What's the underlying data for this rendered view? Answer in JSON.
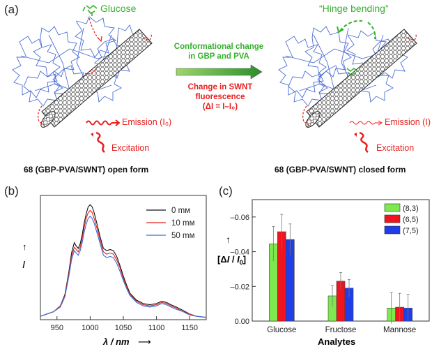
{
  "panel_a": {
    "letter": "(a)",
    "glucose_label": "Glucose",
    "hinge_label": "“Hinge bending”",
    "arrow_text_line1": "Conformational change",
    "arrow_text_line2": "in GBP and PVA",
    "change_line1": "Change in SWNT fluorescence",
    "change_line2": "(ΔI = I–I₀)",
    "left_emission": "Emission (I₀)",
    "left_excitation": "Excitation",
    "right_emission": "Emission (I)",
    "right_excitation": "Excitation",
    "left_caption": "68 (GBP-PVA/SWNT) open form",
    "right_caption": "68 (GBP-PVA/SWNT) closed form",
    "colors": {
      "red": "#e8201e",
      "green": "#35b02d",
      "protein_blue": "#3a5fd0"
    }
  },
  "panel_b": {
    "letter": "(b)",
    "chart_data": {
      "type": "line",
      "title": "",
      "xlabel": "λ / nm",
      "ylabel": "I",
      "x_ticks": [
        950,
        1000,
        1050,
        1100,
        1150
      ],
      "xlim": [
        925,
        1175
      ],
      "ylim": [
        0,
        1.08
      ],
      "x": [
        925,
        935,
        945,
        955,
        962,
        968,
        972,
        976,
        979,
        982,
        985,
        988,
        991,
        994,
        997,
        1000,
        1003,
        1006,
        1010,
        1015,
        1020,
        1025,
        1030,
        1035,
        1040,
        1045,
        1050,
        1055,
        1060,
        1070,
        1080,
        1090,
        1100,
        1108,
        1115,
        1122,
        1130,
        1140,
        1150,
        1160,
        1175
      ],
      "series": [
        {
          "name": "0 mᴍ",
          "color": "#111111",
          "values": [
            0.03,
            0.05,
            0.07,
            0.12,
            0.22,
            0.42,
            0.58,
            0.67,
            0.64,
            0.62,
            0.66,
            0.74,
            0.84,
            0.92,
            0.98,
            1.0,
            0.98,
            0.93,
            0.84,
            0.72,
            0.62,
            0.6,
            0.61,
            0.6,
            0.55,
            0.47,
            0.38,
            0.3,
            0.23,
            0.17,
            0.14,
            0.13,
            0.14,
            0.16,
            0.15,
            0.13,
            0.11,
            0.08,
            0.05,
            0.03,
            0.02
          ]
        },
        {
          "name": "10 mᴍ",
          "color": "#e8201e",
          "values": [
            0.03,
            0.05,
            0.07,
            0.12,
            0.21,
            0.4,
            0.55,
            0.63,
            0.61,
            0.59,
            0.63,
            0.71,
            0.8,
            0.88,
            0.93,
            0.95,
            0.93,
            0.88,
            0.8,
            0.69,
            0.59,
            0.57,
            0.58,
            0.57,
            0.52,
            0.45,
            0.36,
            0.28,
            0.22,
            0.16,
            0.13,
            0.12,
            0.13,
            0.15,
            0.14,
            0.12,
            0.1,
            0.07,
            0.05,
            0.03,
            0.02
          ]
        },
        {
          "name": "50 mᴍ",
          "color": "#3a6fd8",
          "values": [
            0.03,
            0.05,
            0.07,
            0.11,
            0.2,
            0.38,
            0.52,
            0.6,
            0.58,
            0.56,
            0.6,
            0.67,
            0.76,
            0.83,
            0.88,
            0.9,
            0.88,
            0.84,
            0.76,
            0.66,
            0.56,
            0.54,
            0.55,
            0.54,
            0.49,
            0.42,
            0.34,
            0.27,
            0.21,
            0.15,
            0.12,
            0.11,
            0.12,
            0.14,
            0.13,
            0.11,
            0.09,
            0.07,
            0.04,
            0.03,
            0.02
          ]
        }
      ]
    }
  },
  "panel_c": {
    "letter": "(c)",
    "chart_data": {
      "type": "bar",
      "title": "",
      "xlabel": "Analytes",
      "ylabel": "[ΔI / I0]",
      "categories": [
        "Glucose",
        "Fructose",
        "Mannose"
      ],
      "y_ticks": [
        0.0,
        -0.02,
        -0.04,
        -0.06
      ],
      "y_tick_labels": [
        "0.00",
        "–0.02",
        "–0.04",
        "–0.06"
      ],
      "ylim": [
        0,
        -0.07
      ],
      "series": [
        {
          "name": "(8,3)",
          "color": "#7ee84f",
          "values": [
            -0.0445,
            -0.0145,
            -0.0075
          ],
          "errors": [
            0.01,
            0.006,
            0.009
          ]
        },
        {
          "name": "(6,5)",
          "color": "#f0141e",
          "values": [
            -0.0515,
            -0.023,
            -0.008
          ],
          "errors": [
            0.01,
            0.005,
            0.008
          ]
        },
        {
          "name": "(7,5)",
          "color": "#1f3ee8",
          "values": [
            -0.047,
            -0.019,
            -0.0075
          ],
          "errors": [
            0.009,
            0.005,
            0.008
          ]
        }
      ]
    }
  }
}
